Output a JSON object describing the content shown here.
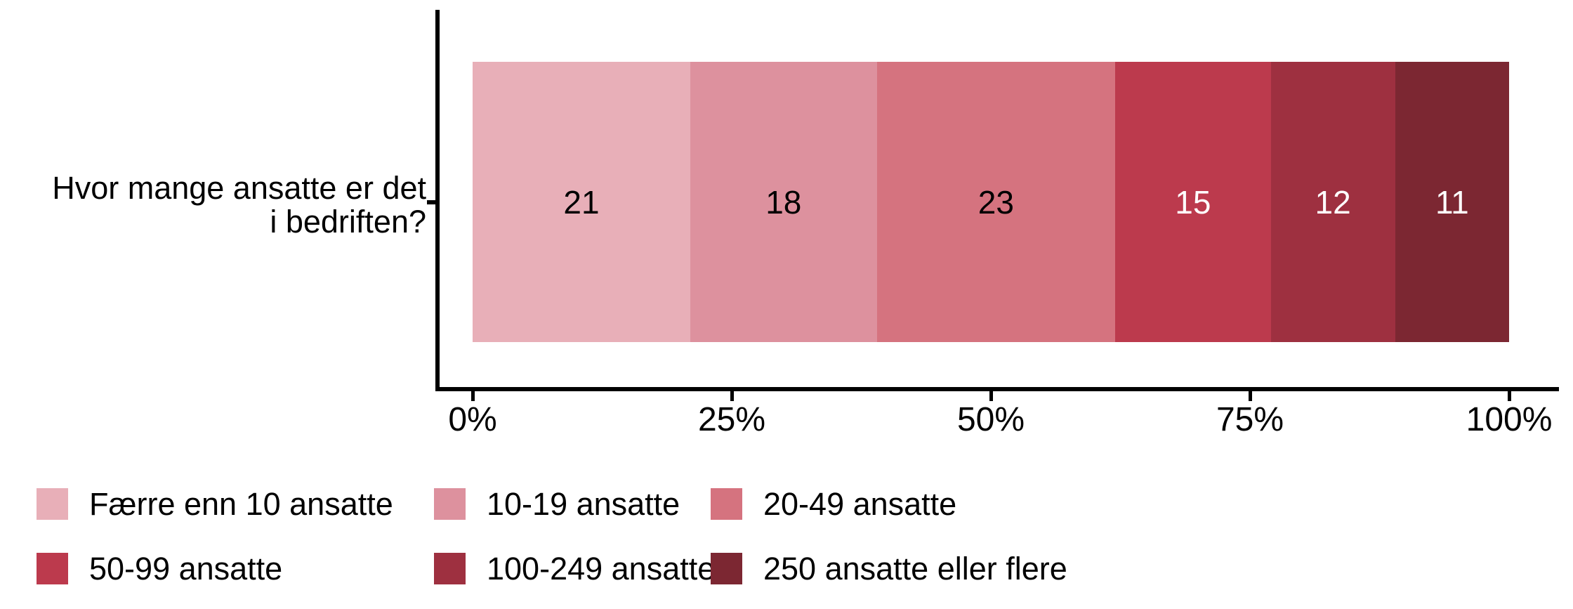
{
  "chart_data": {
    "type": "bar",
    "orientation": "horizontal",
    "stacked": true,
    "percent_scale": true,
    "title": "",
    "ylabel_lines": [
      "Hvor mange ansatte er det",
      "i bedriften?"
    ],
    "question": "Hvor mange ansatte er det i bedriften?",
    "segments": [
      {
        "label": "Færre enn 10 ansatte",
        "value": 21,
        "color": "#E8AFB8",
        "text_color": "#000000"
      },
      {
        "label": "10-19 ansatte",
        "value": 18,
        "color": "#DD919E",
        "text_color": "#000000"
      },
      {
        "label": "20-49 ansatte",
        "value": 23,
        "color": "#D5737F",
        "text_color": "#000000"
      },
      {
        "label": "50-99 ansatte",
        "value": 15,
        "color": "#BC3A4D",
        "text_color": "#FFFFFF"
      },
      {
        "label": "100-249 ansatte",
        "value": 12,
        "color": "#9E3040",
        "text_color": "#FFFFFF"
      },
      {
        "label": "250 ansatte eller flere",
        "value": 11,
        "color": "#7C2732",
        "text_color": "#FFFFFF"
      }
    ],
    "x_ticks": [
      "0%",
      "25%",
      "50%",
      "75%",
      "100%"
    ],
    "xlim": [
      0,
      100
    ],
    "axis_color": "#000000",
    "background_color": "#FFFFFF",
    "legend_position": "bottom",
    "grid": false
  }
}
